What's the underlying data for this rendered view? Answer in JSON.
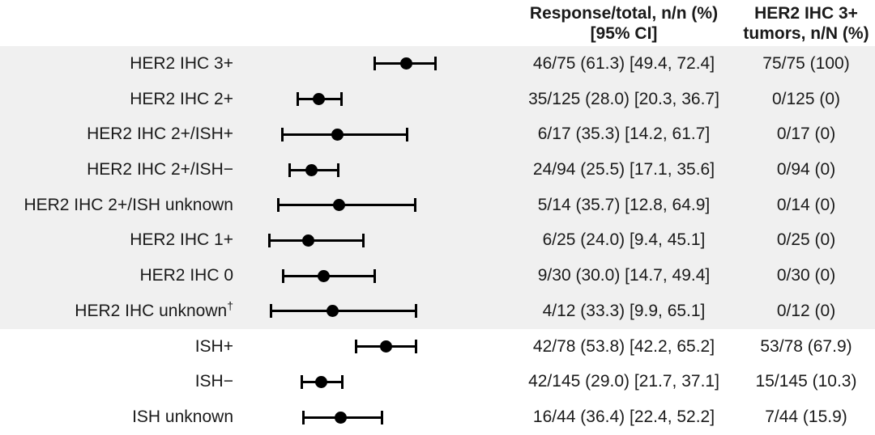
{
  "figure": {
    "kind": "forest plot of response rate by HER2 status subgroup",
    "background": "#ffffff",
    "band_color": "#f0f0f0",
    "marker_color": "#000000",
    "text_color": "#1a1a1a"
  },
  "header": {
    "response_col": [
      "Response/total, n/n (%)",
      "[95% CI]"
    ],
    "her2_col": [
      "HER2 IHC 3+",
      "tumors, n/N (%)"
    ]
  },
  "chart_data": {
    "type": "scatter",
    "subtype": "forest-plot-horizontal-ci",
    "title": "",
    "xlabel": "",
    "ylabel": "",
    "x_axis": {
      "min": 0,
      "max": 80,
      "ticks_shown": false,
      "grid": false
    },
    "legend": {
      "shown": false
    },
    "rows": [
      {
        "label": "HER2 IHC 3+",
        "point": 61.3,
        "ci": [
          49.4,
          72.4
        ],
        "response": "46/75 (61.3) [49.4, 72.4]",
        "her2_ihc3": "75/75 (100)",
        "band": "gray"
      },
      {
        "label": "HER2 IHC 2+",
        "point": 28.0,
        "ci": [
          20.3,
          36.7
        ],
        "response": "35/125 (28.0) [20.3, 36.7]",
        "her2_ihc3": "0/125 (0)",
        "band": "gray"
      },
      {
        "label": "HER2 IHC 2+/ISH+",
        "point": 35.3,
        "ci": [
          14.2,
          61.7
        ],
        "response": "6/17 (35.3) [14.2, 61.7]",
        "her2_ihc3": "0/17 (0)",
        "band": "gray"
      },
      {
        "label": "HER2 IHC 2+/ISH−",
        "point": 25.5,
        "ci": [
          17.1,
          35.6
        ],
        "response": "24/94 (25.5) [17.1, 35.6]",
        "her2_ihc3": "0/94 (0)",
        "band": "gray"
      },
      {
        "label": "HER2 IHC 2+/ISH unknown",
        "point": 35.7,
        "ci": [
          12.8,
          64.9
        ],
        "response": "5/14 (35.7) [12.8, 64.9]",
        "her2_ihc3": "0/14 (0)",
        "band": "gray"
      },
      {
        "label": "HER2 IHC 1+",
        "point": 24.0,
        "ci": [
          9.4,
          45.1
        ],
        "response": "6/25 (24.0) [9.4, 45.1]",
        "her2_ihc3": "0/25 (0)",
        "band": "gray"
      },
      {
        "label": "HER2 IHC 0",
        "point": 30.0,
        "ci": [
          14.7,
          49.4
        ],
        "response": "9/30 (30.0) [14.7, 49.4]",
        "her2_ihc3": "0/30 (0)",
        "band": "gray"
      },
      {
        "label": "HER2 IHC unknown",
        "sup": "†",
        "point": 33.3,
        "ci": [
          9.9,
          65.1
        ],
        "response": "4/12 (33.3) [9.9, 65.1]",
        "her2_ihc3": "0/12 (0)",
        "band": "gray"
      },
      {
        "label": "ISH+",
        "point": 53.8,
        "ci": [
          42.2,
          65.2
        ],
        "response": "42/78 (53.8) [42.2, 65.2]",
        "her2_ihc3": "53/78 (67.9)",
        "band": "white"
      },
      {
        "label": "ISH−",
        "point": 29.0,
        "ci": [
          21.7,
          37.1
        ],
        "response": "42/145 (29.0) [21.7, 37.1]",
        "her2_ihc3": "15/145 (10.3)",
        "band": "white"
      },
      {
        "label": "ISH unknown",
        "point": 36.4,
        "ci": [
          22.4,
          52.2
        ],
        "response": "16/44 (36.4) [22.4, 52.2]",
        "her2_ihc3": "7/44 (15.9)",
        "band": "white"
      }
    ]
  }
}
